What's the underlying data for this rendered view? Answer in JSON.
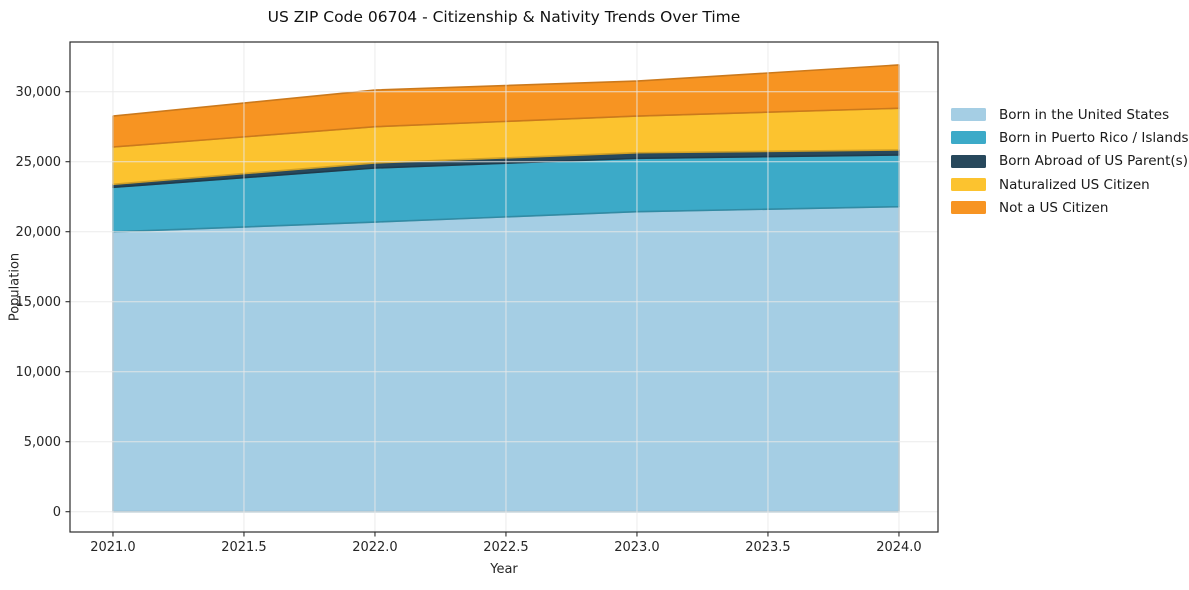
{
  "title": "US ZIP Code 06704 - Citizenship & Nativity Trends Over Time",
  "chart_data": {
    "type": "area",
    "stacked": true,
    "title": "US ZIP Code 06704 - Citizenship & Nativity Trends Over Time",
    "xlabel": "Year",
    "ylabel": "Population",
    "x": [
      2021,
      2022,
      2023,
      2024
    ],
    "series": [
      {
        "name": "Born in the United States",
        "color": "#a5cee4",
        "values": [
          19990,
          20690,
          21430,
          21790
        ]
      },
      {
        "name": "Born in Puerto Rico / Islands",
        "color": "#3caac8",
        "values": [
          3180,
          3860,
          3810,
          3690
        ]
      },
      {
        "name": "Born Abroad of US Parent(s)",
        "color": "#27485c",
        "values": [
          215,
          360,
          400,
          360
        ]
      },
      {
        "name": "Naturalized US Citizen",
        "color": "#fcc32f",
        "values": [
          2665,
          2590,
          2620,
          2980
        ]
      },
      {
        "name": "Not a US Citizen",
        "color": "#f79422",
        "values": [
          2210,
          2620,
          2500,
          3090
        ]
      }
    ],
    "x_tick_labels": [
      "2021.0",
      "2021.5",
      "2022.0",
      "2022.5",
      "2023.0",
      "2023.5",
      "2024.0"
    ],
    "x_tick_values": [
      2021,
      2021.5,
      2022,
      2022.5,
      2023,
      2023.5,
      2024
    ],
    "y_tick_labels": [
      "0",
      "5,000",
      "10,000",
      "15,000",
      "20,000",
      "25,000",
      "30,000"
    ],
    "y_tick_values": [
      0,
      5000,
      10000,
      15000,
      20000,
      25000,
      30000
    ],
    "xlim": [
      2020.836,
      2024.149
    ],
    "ylim": [
      -1450,
      33550
    ],
    "grid": true,
    "grid_on_top": true,
    "legend_position": "right-outside",
    "colors": {
      "grid": "#e9e9e9",
      "spine": "#2b2b2b",
      "tick_label": "#262626",
      "background": "#ffffff"
    }
  }
}
